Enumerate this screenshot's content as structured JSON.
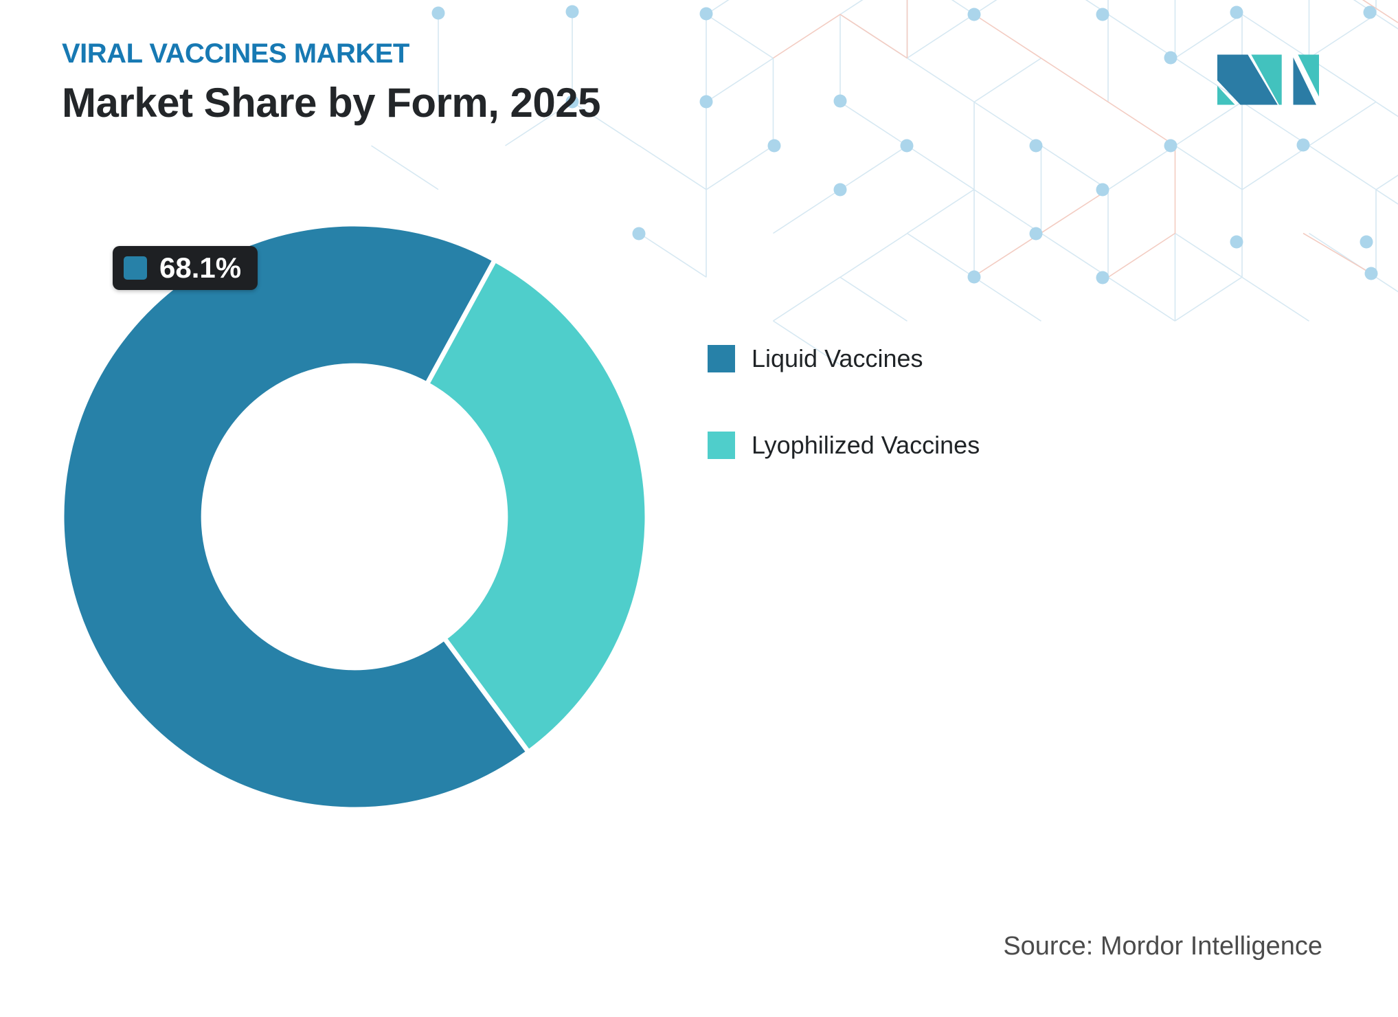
{
  "header": {
    "kicker": "VIRAL VACCINES MARKET",
    "title": "Market Share by Form, 2025"
  },
  "chart_data": {
    "type": "donut",
    "title": "Market Share by Form, 2025",
    "categories": [
      "Liquid Vaccines",
      "Lyophilized Vaccines"
    ],
    "values": [
      68.1,
      31.9
    ],
    "colors": [
      "#2781A8",
      "#4FCECB"
    ],
    "inner_radius_ratio": 0.516,
    "rotation_deg": 143.5,
    "data_label": {
      "text": "68.1%",
      "series_index": 0
    },
    "legend_position": "right",
    "separator_color": "#ffffff"
  },
  "legend": {
    "items": [
      {
        "label": "Liquid Vaccines",
        "color": "#2781A8"
      },
      {
        "label": "Lyophilized Vaccines",
        "color": "#4FCECB"
      }
    ]
  },
  "badge": {
    "value": "68.1%",
    "background": "#1E2023",
    "text_color": "#FFFFFF"
  },
  "source": {
    "text": "Source: Mordor Intelligence"
  },
  "brand": {
    "logo_name": "mordor-intelligence-logo",
    "logo_blue": "#2B7CA5",
    "logo_teal": "#42C2BE"
  },
  "decor_colors": {
    "kicker_text": "#1779B3",
    "title_text": "#232629",
    "legend_text": "#1F2326",
    "source_text": "#4B4B4B",
    "pattern_line": "#D6E8F2",
    "pattern_accent_line": "#F3CCC2",
    "pattern_dot": "#ABD5EB"
  }
}
